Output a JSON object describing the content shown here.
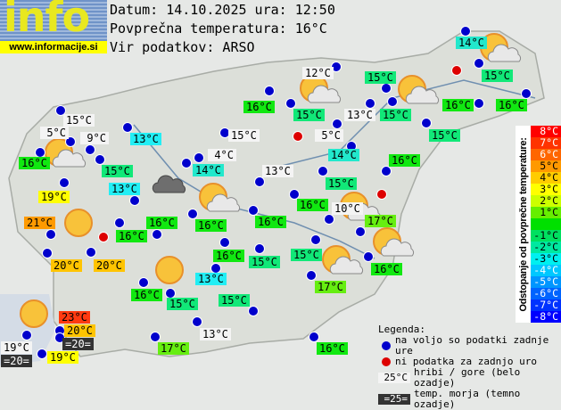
{
  "header": {
    "logo": "info",
    "site": "www.informacije.si",
    "date_line": "Datum: 14.10.2025 ura: 12:50",
    "avg_line": "Povprečna temperatura: 16°C",
    "source_line": "Vir podatkov: ARSO"
  },
  "colors": {
    "available_dot": "#0000cc",
    "missing_dot": "#dd0000",
    "mountain": "#f4f4f4",
    "sea": "#333333",
    "16": "#11e811",
    "15": "#11e878",
    "17": "#66ee11",
    "14": "#22e8cc",
    "13": "#22eef4",
    "19": "#ffff00",
    "20": "#ffc400",
    "21": "#ff9a00",
    "23": "#ff3a10"
  },
  "stations": [
    {
      "t": "14°C",
      "c": "14"
    },
    {
      "t": "15°C",
      "c": "15"
    },
    {
      "t": "12°C",
      "c": "mountain"
    },
    {
      "t": "15°C",
      "c": "15"
    },
    {
      "t": "16°C",
      "c": "16"
    },
    {
      "t": "15°C",
      "c": "15"
    },
    {
      "t": "13°C",
      "c": "mountain"
    },
    {
      "t": "15°C",
      "c": "15"
    },
    {
      "t": "16°C",
      "c": "16"
    },
    {
      "t": "16°C",
      "c": "16"
    },
    {
      "t": "15°C",
      "c": "mountain"
    },
    {
      "t": "5°C",
      "c": "mountain"
    },
    {
      "t": "9°C",
      "c": "mountain"
    },
    {
      "t": "13°C",
      "c": "13"
    },
    {
      "t": "15°C",
      "c": "mountain"
    },
    {
      "t": "5°C",
      "c": "mountain"
    },
    {
      "t": "15°C",
      "c": "15"
    },
    {
      "t": "16°C",
      "c": "16"
    },
    {
      "t": "4°C",
      "c": "mountain"
    },
    {
      "t": "14°C",
      "c": "14"
    },
    {
      "t": "15°C",
      "c": "15"
    },
    {
      "t": "14°C",
      "c": "14"
    },
    {
      "t": "13°C",
      "c": "mountain"
    },
    {
      "t": "16°C",
      "c": "16"
    },
    {
      "t": "13°C",
      "c": "13"
    },
    {
      "t": "15°C",
      "c": "15"
    },
    {
      "t": "19°C",
      "c": "19"
    },
    {
      "t": "16°C",
      "c": "16"
    },
    {
      "t": "10°C",
      "c": "mountain"
    },
    {
      "t": "17°C",
      "c": "17"
    },
    {
      "t": "21°C",
      "c": "21"
    },
    {
      "t": "16°C",
      "c": "16"
    },
    {
      "t": "16°C",
      "c": "16"
    },
    {
      "t": "16°C",
      "c": "16"
    },
    {
      "t": "16°C",
      "c": "16"
    },
    {
      "t": "20°C",
      "c": "20"
    },
    {
      "t": "20°C",
      "c": "20"
    },
    {
      "t": "16°C",
      "c": "16"
    },
    {
      "t": "15°C",
      "c": "15"
    },
    {
      "t": "15°C",
      "c": "15"
    },
    {
      "t": "16°C",
      "c": "16"
    },
    {
      "t": "13°C",
      "c": "13"
    },
    {
      "t": "17°C",
      "c": "17"
    },
    {
      "t": "16°C",
      "c": "16"
    },
    {
      "t": "15°C",
      "c": "15"
    },
    {
      "t": "15°C",
      "c": "15"
    },
    {
      "t": "13°C",
      "c": "mountain"
    },
    {
      "t": "17°C",
      "c": "17"
    },
    {
      "t": "16°C",
      "c": "16"
    },
    {
      "t": "23°C",
      "c": "23"
    },
    {
      "t": "20°C",
      "c": "20"
    },
    {
      "t": "=20=",
      "c": "sea"
    },
    {
      "t": "19°C",
      "c": "mountain"
    },
    {
      "t": "=20=",
      "c": "sea"
    },
    {
      "t": "19°C",
      "c": "19"
    }
  ],
  "weather_icons": [
    "sun-cloud",
    "sun-cloud",
    "sun-cloud",
    "sun-cloud",
    "dark-cloud",
    "sun-cloud",
    "sun-cloud",
    "sun",
    "sun",
    "sun-cloud",
    "sun-cloud",
    "sun"
  ],
  "scale": {
    "title": "Odstopanje od povprečne temperature:",
    "rows": [
      {
        "label": "8°C",
        "color": "#ff0000"
      },
      {
        "label": "7°C",
        "color": "#ff3300"
      },
      {
        "label": "6°C",
        "color": "#ff6600"
      },
      {
        "label": "5°C",
        "color": "#ff9900"
      },
      {
        "label": "4°C",
        "color": "#ffcc00"
      },
      {
        "label": "3°C",
        "color": "#ffff00"
      },
      {
        "label": "2°C",
        "color": "#ccff00"
      },
      {
        "label": "1°C",
        "color": "#66ee00"
      },
      {
        "label": "",
        "color": "#00e000"
      },
      {
        "label": "-1°C",
        "color": "#00e060"
      },
      {
        "label": "-2°C",
        "color": "#00e8a0"
      },
      {
        "label": "-3°C",
        "color": "#00f0f0"
      },
      {
        "label": "-4°C",
        "color": "#00c8ff"
      },
      {
        "label": "-5°C",
        "color": "#0096ff"
      },
      {
        "label": "-6°C",
        "color": "#0064ff"
      },
      {
        "label": "-7°C",
        "color": "#0032ff"
      },
      {
        "label": "-8°C",
        "color": "#0000ff"
      }
    ]
  },
  "legend": {
    "title": "Legenda:",
    "available": "na voljo so podatki zadnje ure",
    "missing": "ni podatka za zadnjo uro",
    "mountain_sample": "25°C",
    "mountain_text": "hribi / gore (belo ozadje)",
    "sea_sample": "=25=",
    "sea_text": "temp. morja (temno ozadje)"
  }
}
